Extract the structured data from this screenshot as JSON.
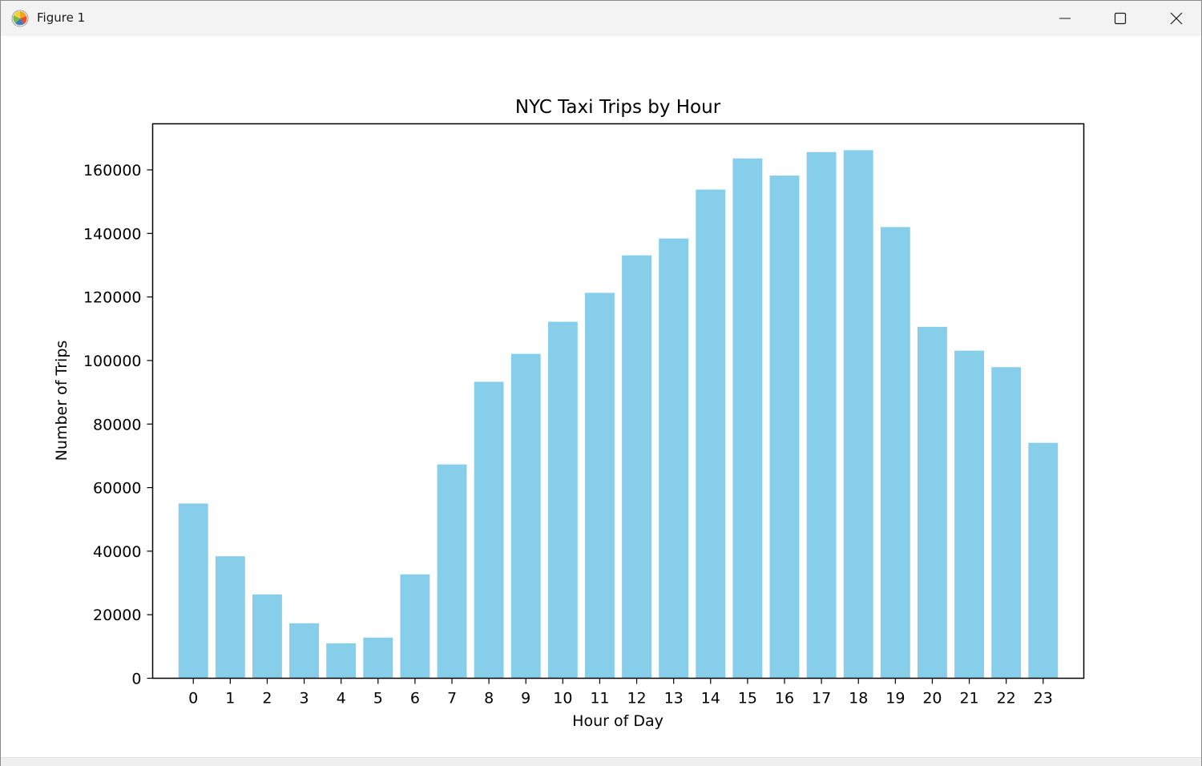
{
  "window": {
    "title": "Figure 1",
    "icon": "matplotlib-icon",
    "controls": [
      "minimize-icon",
      "maximize-icon",
      "close-icon"
    ]
  },
  "chart_data": {
    "type": "bar",
    "title": "NYC Taxi Trips by Hour",
    "xlabel": "Hour of Day",
    "ylabel": "Number of Trips",
    "categories": [
      "0",
      "1",
      "2",
      "3",
      "4",
      "5",
      "6",
      "7",
      "8",
      "9",
      "10",
      "11",
      "12",
      "13",
      "14",
      "15",
      "16",
      "17",
      "18",
      "19",
      "20",
      "21",
      "22",
      "23"
    ],
    "values": [
      55000,
      38400,
      26400,
      17300,
      11000,
      12800,
      32700,
      67300,
      93300,
      102100,
      112200,
      121300,
      133100,
      138400,
      153800,
      163600,
      158200,
      165600,
      166200,
      142000,
      110600,
      103100,
      97900,
      74100
    ],
    "yticks": [
      0,
      20000,
      40000,
      60000,
      80000,
      100000,
      120000,
      140000,
      160000
    ],
    "ylim": [
      0,
      174500
    ],
    "color": "#87ceeb",
    "grid": false,
    "legend": "none"
  }
}
